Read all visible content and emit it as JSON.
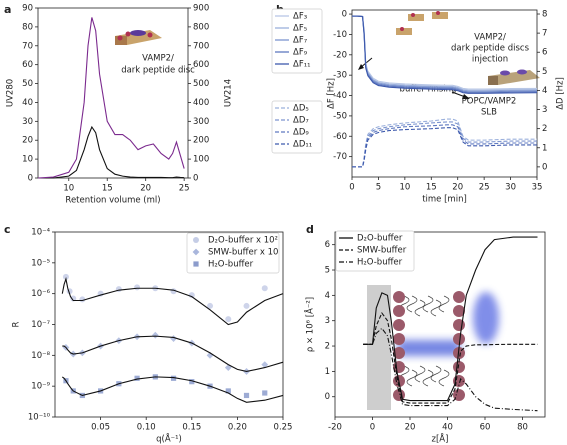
{
  "chart_data": [
    {
      "type": "line",
      "panel_label": "a",
      "xlabel": "Retention volume (ml)",
      "ylabel": "UV280",
      "y2label": "UV214",
      "annotations": [
        "VAMP2/",
        "dark peptide disc"
      ],
      "xlim": [
        6,
        25.5
      ],
      "xticks": [
        10,
        15,
        20,
        25
      ],
      "ylim": [
        0,
        90
      ],
      "yticks": [
        0,
        10,
        20,
        30,
        40,
        50,
        60,
        70,
        80,
        90
      ],
      "y2lim": [
        0,
        900
      ],
      "y2ticks": [
        0,
        100,
        200,
        300,
        400,
        500,
        600,
        700,
        800,
        900
      ],
      "x": [
        6,
        8,
        10,
        11,
        12,
        12.5,
        13,
        13.5,
        14,
        15,
        16,
        17,
        18,
        19,
        20,
        21,
        22,
        23,
        23.5,
        24,
        24.5,
        25
      ],
      "series": [
        {
          "color": "#111111",
          "values": [
            0,
            0,
            1,
            4,
            15,
            22,
            27,
            24,
            15,
            5,
            2,
            1,
            0.5,
            0.3,
            0.3,
            0.3,
            0.3,
            0.2,
            0.2,
            0.5,
            0.3,
            0.2
          ]
        },
        {
          "color": "#7b2a8e",
          "axis": "y2",
          "values": [
            0,
            5,
            30,
            100,
            400,
            700,
            850,
            780,
            550,
            300,
            230,
            230,
            200,
            150,
            170,
            180,
            130,
            100,
            130,
            190,
            120,
            50
          ]
        }
      ]
    },
    {
      "type": "line",
      "panel_label": "b",
      "xlabel": "time [min]",
      "ylabel": "ΔF [Hz]",
      "y2label": "ΔD [Hz]",
      "annotations": [
        "VAMP2/",
        "dark peptide discs",
        "injection",
        "buffer rinsing",
        "POPC/VAMP2",
        "SLB"
      ],
      "xlim": [
        0,
        35
      ],
      "xticks": [
        0,
        5,
        10,
        15,
        20,
        25,
        30,
        35
      ],
      "ylim": [
        -80,
        2
      ],
      "yticks": [
        0,
        -10,
        -20,
        -30,
        -40,
        -50,
        -60,
        -70
      ],
      "y2lim": [
        -0.53,
        8.21
      ],
      "y2ticks": [
        0,
        1,
        2,
        3,
        4,
        5,
        6,
        7,
        8
      ],
      "x": [
        0,
        1,
        2,
        2.3,
        2.6,
        3,
        4,
        5,
        7,
        10,
        15,
        18,
        19,
        20,
        21,
        22,
        25,
        30,
        35
      ],
      "series": [
        {
          "name": "ΔF₃",
          "color": "#b8c7e6",
          "dash": "solid",
          "values": [
            -1,
            -1,
            -1.2,
            -8,
            -24,
            -28,
            -31.5,
            -33,
            -33.8,
            -34.3,
            -34.8,
            -35,
            -35,
            -35.5,
            -36.5,
            -36.8,
            -36.8,
            -36.6,
            -36.5
          ]
        },
        {
          "name": "ΔF₅",
          "color": "#9bb0dc",
          "dash": "solid",
          "values": [
            -1,
            -1,
            -1.2,
            -9,
            -25,
            -28.8,
            -32.2,
            -33.6,
            -34.4,
            -34.9,
            -35.4,
            -35.6,
            -35.6,
            -36.1,
            -37.1,
            -37.4,
            -37.4,
            -37.2,
            -37.1
          ]
        },
        {
          "name": "ΔF₇",
          "color": "#7d95cf",
          "dash": "solid",
          "values": [
            -1,
            -1,
            -1.2,
            -9.5,
            -25.5,
            -29.3,
            -32.7,
            -34.1,
            -34.9,
            -35.4,
            -35.9,
            -36.1,
            -36.1,
            -36.6,
            -37.6,
            -37.9,
            -37.9,
            -37.7,
            -37.6
          ]
        },
        {
          "name": "ΔF₉",
          "color": "#5f79c0",
          "dash": "solid",
          "values": [
            -1,
            -1,
            -1.2,
            -10,
            -26,
            -29.8,
            -33.2,
            -34.6,
            -35.4,
            -35.9,
            -36.4,
            -36.6,
            -36.6,
            -37.1,
            -38.1,
            -38.4,
            -38.4,
            -38.2,
            -38.1
          ]
        },
        {
          "name": "ΔF₁₁",
          "color": "#3e5aad",
          "dash": "solid",
          "values": [
            -1,
            -1,
            -1.2,
            -10.5,
            -26.5,
            -30.3,
            -33.7,
            -35.1,
            -35.9,
            -36.4,
            -36.9,
            -37.1,
            -37.1,
            -37.6,
            -38.6,
            -38.9,
            -38.9,
            -38.7,
            -38.6
          ]
        },
        {
          "name": "ΔD₅",
          "color": "#9bb0dc",
          "dash": "dashed",
          "axis": "y2",
          "values": [
            0,
            0,
            0,
            0.5,
            1.2,
            1.7,
            2.0,
            2.1,
            2.2,
            2.3,
            2.4,
            2.5,
            2.5,
            2.4,
            1.6,
            1.4,
            1.4,
            1.45,
            1.45
          ]
        },
        {
          "name": "ΔD₇",
          "color": "#7d95cf",
          "dash": "dashed",
          "axis": "y2",
          "values": [
            0,
            0,
            0,
            0.45,
            1.1,
            1.6,
            1.9,
            2.0,
            2.1,
            2.2,
            2.3,
            2.35,
            2.35,
            2.25,
            1.5,
            1.3,
            1.3,
            1.35,
            1.35
          ]
        },
        {
          "name": "ΔD₉",
          "color": "#5f79c0",
          "dash": "dashed",
          "axis": "y2",
          "values": [
            0,
            0,
            0,
            0.4,
            1.0,
            1.5,
            1.8,
            1.9,
            2.0,
            2.1,
            2.15,
            2.2,
            2.2,
            2.1,
            1.4,
            1.2,
            1.2,
            1.25,
            1.25
          ]
        },
        {
          "name": "ΔD₁₁",
          "color": "#3e5aad",
          "dash": "dashed",
          "axis": "y2",
          "values": [
            0,
            0,
            0,
            0.35,
            0.9,
            1.4,
            1.7,
            1.8,
            1.9,
            1.95,
            2.0,
            2.05,
            2.05,
            1.95,
            1.3,
            1.1,
            1.1,
            1.15,
            1.15
          ]
        }
      ]
    },
    {
      "type": "scatter",
      "panel_label": "c",
      "xlabel": "q(Å⁻¹)",
      "ylabel": "R",
      "yscale": "log",
      "xlim": [
        0,
        0.25
      ],
      "xticks": [
        0.05,
        {
          "value": 0.1,
          "label": "0.10"
        },
        0.15,
        {
          "value": 0.2,
          "label": "0.20"
        },
        0.25
      ],
      "ylim": [
        1e-10,
        0.0001
      ],
      "yticks": [
        {
          "value": 1e-10,
          "label": "10⁻¹⁰"
        },
        {
          "value": 1e-09,
          "label": "10⁻⁹"
        },
        {
          "value": 1e-08,
          "label": "10⁻⁸"
        },
        {
          "value": 1e-07,
          "label": "10⁻⁷"
        },
        {
          "value": 1e-06,
          "label": "10⁻⁶"
        },
        {
          "value": 1e-05,
          "label": "10⁻⁵"
        },
        {
          "value": 0.0001,
          "label": "10⁻⁴"
        }
      ],
      "series": [
        {
          "name": "D₂O-buffer x 10²",
          "color": "#c5cde6",
          "marker": "circle",
          "x": [
            0.012,
            0.016,
            0.02,
            0.03,
            0.05,
            0.07,
            0.09,
            0.11,
            0.13,
            0.15,
            0.17,
            0.19,
            0.21,
            0.23
          ],
          "values": [
            3.5e-06,
            1.2e-06,
            7e-07,
            6.5e-07,
            1e-06,
            1.4e-06,
            1.6e-06,
            1.5e-06,
            1.2e-06,
            9e-07,
            4e-07,
            1.5e-07,
            4e-07,
            1.5e-06
          ]
        },
        {
          "name": "SMW-buffer x 10",
          "color": "#a9b6dc",
          "marker": "diamond",
          "x": [
            0.012,
            0.02,
            0.03,
            0.05,
            0.07,
            0.09,
            0.11,
            0.13,
            0.15,
            0.17,
            0.19,
            0.21,
            0.23
          ],
          "values": [
            1.8e-08,
            1.1e-08,
            1.2e-08,
            2e-08,
            3e-08,
            4e-08,
            4.5e-08,
            3.5e-08,
            2.5e-08,
            1e-08,
            4e-09,
            3e-09,
            5e-09
          ]
        },
        {
          "name": "H₂O-buffer",
          "color": "#8c9ccc",
          "marker": "square",
          "x": [
            0.012,
            0.02,
            0.03,
            0.05,
            0.07,
            0.09,
            0.11,
            0.13,
            0.15,
            0.17,
            0.19,
            0.21,
            0.23
          ],
          "values": [
            1.5e-09,
            7e-10,
            5e-10,
            7e-10,
            1.2e-09,
            1.8e-09,
            2e-09,
            1.8e-09,
            1.4e-09,
            1e-09,
            7e-10,
            5e-10,
            6e-10
          ]
        }
      ],
      "fit_x": [
        0.008,
        0.01,
        0.012,
        0.014,
        0.017,
        0.02,
        0.03,
        0.05,
        0.07,
        0.09,
        0.11,
        0.13,
        0.15,
        0.17,
        0.19,
        0.2,
        0.21,
        0.23,
        0.25
      ],
      "fits": [
        {
          "color": "#111111",
          "values": [
            1e-06,
            2e-06,
            3e-06,
            1.5e-06,
            8e-07,
            6e-07,
            6e-07,
            9e-07,
            1.3e-06,
            1.5e-06,
            1.5e-06,
            1.3e-06,
            8e-07,
            3e-07,
            1e-07,
            1.2e-07,
            2.5e-07,
            6e-07,
            1e-06
          ]
        },
        {
          "color": "#111111",
          "values": [
            2e-08,
            2e-08,
            1.8e-08,
            1.5e-08,
            1.2e-08,
            1.1e-08,
            1.2e-08,
            2e-08,
            3e-08,
            4e-08,
            4.2e-08,
            3.8e-08,
            2.5e-08,
            1.2e-08,
            5e-09,
            3.5e-09,
            3e-09,
            4e-09,
            6e-09
          ]
        },
        {
          "color": "#111111",
          "values": [
            2e-09,
            1.8e-09,
            1.5e-09,
            1.2e-09,
            9e-10,
            7e-10,
            5e-10,
            7e-10,
            1.2e-09,
            1.7e-09,
            2e-09,
            1.9e-09,
            1.5e-09,
            1e-09,
            6e-10,
            4e-10,
            3e-10,
            3.5e-10,
            5e-10
          ]
        }
      ]
    },
    {
      "type": "line",
      "panel_label": "d",
      "xlabel": "z[Å]",
      "ylabel": "ρ × 10⁶ [Å⁻²]",
      "xlim": [
        -20,
        92
      ],
      "xticks": [
        -20,
        0,
        20,
        40,
        60,
        80
      ],
      "ylim": [
        -0.8,
        6.5
      ],
      "yticks": [
        0,
        1,
        2,
        3,
        4,
        5,
        6
      ],
      "x": [
        -5,
        0,
        2,
        5,
        8,
        10,
        13,
        16,
        20,
        40,
        44,
        47,
        50,
        55,
        60,
        65,
        75,
        88
      ],
      "series": [
        {
          "name": "D₂O-buffer",
          "color": "#111111",
          "dash": "solid",
          "values": [
            2.07,
            2.07,
            3.5,
            4.1,
            4.0,
            3.0,
            1.0,
            -0.1,
            -0.15,
            -0.15,
            0.5,
            2.5,
            4.0,
            5.0,
            5.8,
            6.2,
            6.3,
            6.3
          ]
        },
        {
          "name": "SMW-buffer",
          "color": "#111111",
          "dash": "dashed",
          "values": [
            2.07,
            2.07,
            2.8,
            3.3,
            3.0,
            2.3,
            0.8,
            -0.2,
            -0.25,
            -0.25,
            0.3,
            1.8,
            2.0,
            2.05,
            2.05,
            2.06,
            2.07,
            2.07
          ]
        },
        {
          "name": "H₂O-buffer",
          "color": "#111111",
          "dash": "dashdot",
          "values": [
            2.07,
            2.07,
            2.5,
            2.7,
            2.4,
            1.7,
            0.5,
            -0.3,
            -0.35,
            -0.35,
            -0.1,
            0.7,
            0.5,
            0.0,
            -0.3,
            -0.45,
            -0.5,
            -0.55
          ]
        }
      ]
    }
  ]
}
